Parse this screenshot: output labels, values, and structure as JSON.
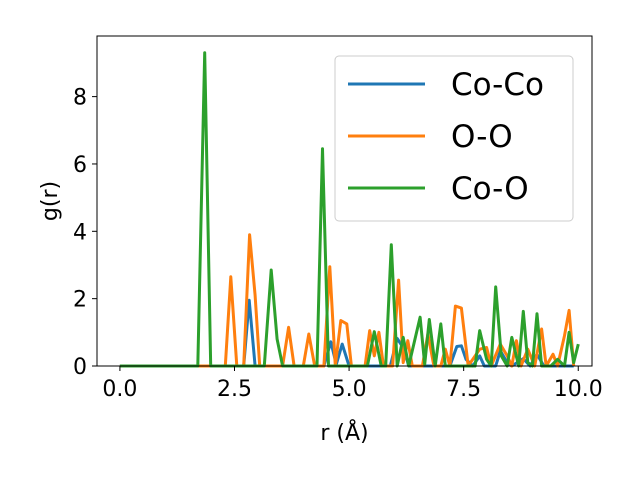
{
  "chart_data": {
    "type": "line",
    "title": "",
    "xlabel": "r (Å)",
    "ylabel": "g(r)",
    "xlim": [
      -0.5,
      10.3
    ],
    "ylim": [
      0,
      9.8
    ],
    "xticks": [
      "0.0",
      "2.5",
      "5.0",
      "7.5",
      "10.0"
    ],
    "xtick_values": [
      0,
      2.5,
      5,
      7.5,
      10
    ],
    "yticks": [
      "0",
      "2",
      "4",
      "6",
      "8"
    ],
    "ytick_values": [
      0,
      2,
      4,
      6,
      8
    ],
    "grid": false,
    "legend_position": "top-right",
    "series": [
      {
        "name": "Co-Co",
        "color": "#1f77b4",
        "points": [
          [
            0,
            0
          ],
          [
            2.7,
            0
          ],
          [
            2.82,
            1.95
          ],
          [
            2.95,
            0
          ],
          [
            4.45,
            0
          ],
          [
            4.6,
            0.72
          ],
          [
            4.72,
            0.05
          ],
          [
            4.85,
            0.65
          ],
          [
            5.0,
            0
          ],
          [
            5.9,
            0
          ],
          [
            6.05,
            0.82
          ],
          [
            6.2,
            0.5
          ],
          [
            6.3,
            0
          ],
          [
            7.2,
            0
          ],
          [
            7.35,
            0.58
          ],
          [
            7.45,
            0.6
          ],
          [
            7.55,
            0.2
          ],
          [
            7.7,
            0
          ],
          [
            7.85,
            0.3
          ],
          [
            7.95,
            0
          ],
          [
            8.2,
            0
          ],
          [
            8.3,
            0.45
          ],
          [
            8.45,
            0.1
          ],
          [
            8.55,
            0
          ],
          [
            8.8,
            0.22
          ],
          [
            8.95,
            0
          ],
          [
            9.1,
            0.35
          ],
          [
            9.25,
            0
          ],
          [
            9.9,
            0
          ]
        ]
      },
      {
        "name": "O-O",
        "color": "#ff7f0e",
        "points": [
          [
            0,
            0
          ],
          [
            2.3,
            0
          ],
          [
            2.42,
            2.65
          ],
          [
            2.55,
            0
          ],
          [
            2.7,
            0
          ],
          [
            2.83,
            3.9
          ],
          [
            2.95,
            2.1
          ],
          [
            3.05,
            0
          ],
          [
            3.55,
            0
          ],
          [
            3.68,
            1.15
          ],
          [
            3.8,
            0
          ],
          [
            4.0,
            0
          ],
          [
            4.12,
            0.95
          ],
          [
            4.25,
            0
          ],
          [
            4.45,
            0
          ],
          [
            4.58,
            2.95
          ],
          [
            4.7,
            0
          ],
          [
            4.82,
            1.35
          ],
          [
            4.95,
            1.25
          ],
          [
            5.05,
            0
          ],
          [
            5.35,
            0
          ],
          [
            5.45,
            1.05
          ],
          [
            5.55,
            0.3
          ],
          [
            5.65,
            1.0
          ],
          [
            5.75,
            0
          ],
          [
            5.95,
            0
          ],
          [
            6.08,
            2.55
          ],
          [
            6.18,
            0.1
          ],
          [
            6.28,
            0.75
          ],
          [
            6.38,
            0
          ],
          [
            6.6,
            0
          ],
          [
            6.72,
            0.95
          ],
          [
            6.85,
            0
          ],
          [
            7.0,
            0
          ],
          [
            7.1,
            0.5
          ],
          [
            7.2,
            0
          ],
          [
            7.32,
            1.78
          ],
          [
            7.45,
            1.72
          ],
          [
            7.6,
            0
          ],
          [
            7.85,
            0.5
          ],
          [
            8.0,
            0.55
          ],
          [
            8.1,
            0
          ],
          [
            8.3,
            0.65
          ],
          [
            8.45,
            0.3
          ],
          [
            8.55,
            0
          ],
          [
            8.65,
            0.75
          ],
          [
            8.75,
            0
          ],
          [
            8.9,
            0.5
          ],
          [
            9.05,
            0
          ],
          [
            9.2,
            1.1
          ],
          [
            9.3,
            0
          ],
          [
            9.45,
            0.35
          ],
          [
            9.55,
            0
          ],
          [
            9.7,
            0.9
          ],
          [
            9.8,
            1.65
          ],
          [
            9.9,
            0
          ]
        ]
      },
      {
        "name": "Co-O",
        "color": "#2ca02c",
        "points": [
          [
            0,
            0
          ],
          [
            1.7,
            0
          ],
          [
            1.85,
            9.3
          ],
          [
            1.98,
            0
          ],
          [
            3.15,
            0
          ],
          [
            3.3,
            2.85
          ],
          [
            3.43,
            0.8
          ],
          [
            3.55,
            0
          ],
          [
            4.3,
            0
          ],
          [
            4.42,
            6.45
          ],
          [
            4.55,
            0
          ],
          [
            5.4,
            0
          ],
          [
            5.55,
            1.02
          ],
          [
            5.7,
            0
          ],
          [
            5.8,
            0
          ],
          [
            5.92,
            3.6
          ],
          [
            6.05,
            0
          ],
          [
            6.18,
            0.85
          ],
          [
            6.3,
            0
          ],
          [
            6.55,
            1.45
          ],
          [
            6.65,
            0.05
          ],
          [
            6.75,
            1.38
          ],
          [
            6.88,
            0
          ],
          [
            7.0,
            1.25
          ],
          [
            7.1,
            0
          ],
          [
            7.75,
            0
          ],
          [
            7.85,
            1.05
          ],
          [
            8.0,
            0.2
          ],
          [
            8.1,
            0
          ],
          [
            8.2,
            2.35
          ],
          [
            8.32,
            0.3
          ],
          [
            8.45,
            0
          ],
          [
            8.55,
            0.85
          ],
          [
            8.7,
            0
          ],
          [
            8.8,
            1.62
          ],
          [
            8.9,
            0.1
          ],
          [
            9.0,
            0
          ],
          [
            9.1,
            1.55
          ],
          [
            9.2,
            0
          ],
          [
            9.4,
            0
          ],
          [
            9.55,
            0.2
          ],
          [
            9.7,
            0
          ],
          [
            9.8,
            1.0
          ],
          [
            9.9,
            0.1
          ],
          [
            10.0,
            0.65
          ]
        ]
      }
    ]
  }
}
